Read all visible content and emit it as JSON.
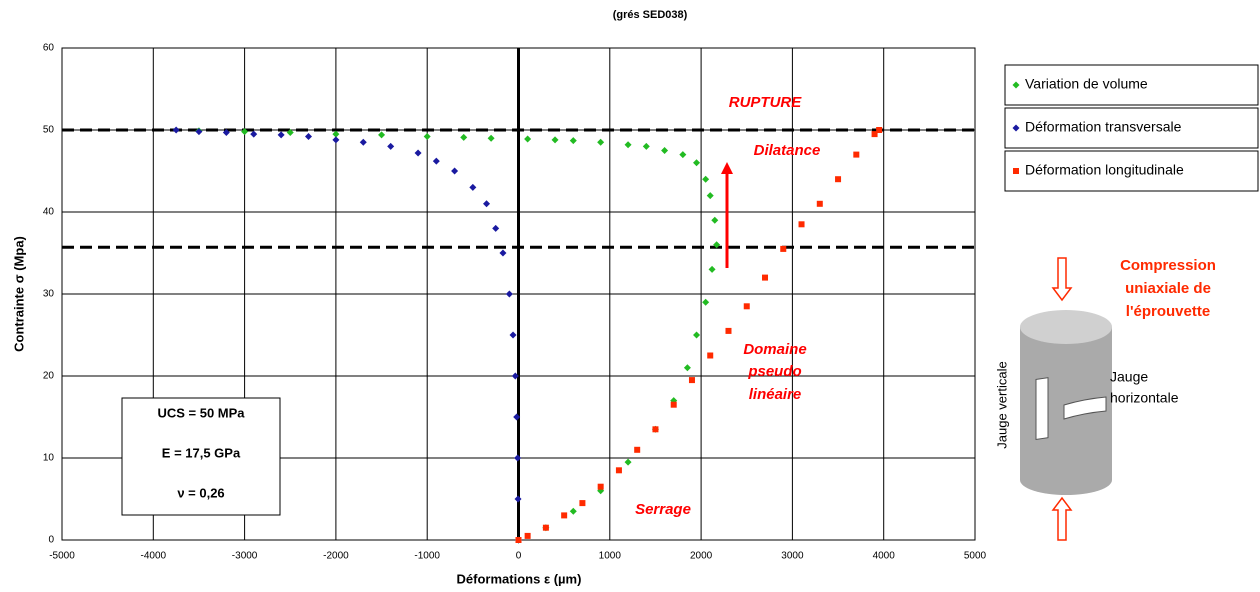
{
  "chart_data": {
    "type": "scatter",
    "title": "(grés  SED038)",
    "x_label": "Déformations ε (µm)",
    "y_label": "Contrainte σ (Mpa)",
    "xlim": [
      -5000,
      5000
    ],
    "ylim": [
      0,
      60
    ],
    "xticks": [
      -5000,
      -4000,
      -3000,
      -2000,
      -1000,
      0,
      1000,
      2000,
      3000,
      4000,
      5000
    ],
    "yticks": [
      0,
      10,
      20,
      30,
      40,
      50,
      60
    ],
    "grid": true,
    "reference_lines": [
      50,
      35.7
    ],
    "series": [
      {
        "name": "Variation de volume",
        "color": "#22bb22",
        "marker": "diamond",
        "x": [
          0,
          300,
          600,
          900,
          1200,
          1500,
          1700,
          1850,
          1950,
          2050,
          2120,
          2170,
          2150,
          2100,
          2050,
          1950,
          1800,
          1600,
          1400,
          1200,
          900,
          600,
          400,
          100,
          -300,
          -600,
          -1000,
          -1500,
          -2000,
          -2500,
          -3000,
          -3500
        ],
        "values": [
          0,
          1.5,
          3.5,
          6,
          9.5,
          13.5,
          17,
          21,
          25,
          29,
          33,
          36,
          39,
          42,
          44,
          46,
          47,
          47.5,
          48,
          48.2,
          48.5,
          48.7,
          48.8,
          48.9,
          49,
          49.1,
          49.2,
          49.4,
          49.5,
          49.7,
          49.8,
          49.9
        ]
      },
      {
        "name": "Déformation transversale",
        "color": "#1a1aa0",
        "marker": "diamond",
        "x": [
          0,
          -5,
          -10,
          -20,
          -35,
          -60,
          -100,
          -170,
          -250,
          -350,
          -500,
          -700,
          -900,
          -1100,
          -1400,
          -1700,
          -2000,
          -2300,
          -2600,
          -2900,
          -3200,
          -3500,
          -3750
        ],
        "values": [
          0,
          5,
          10,
          15,
          20,
          25,
          30,
          35,
          38,
          41,
          43,
          45,
          46.2,
          47.2,
          48,
          48.5,
          48.8,
          49.2,
          49.4,
          49.5,
          49.7,
          49.8,
          50
        ]
      },
      {
        "name": "Déformation longitudinale",
        "color": "#ff2a00",
        "marker": "square",
        "x": [
          0,
          100,
          300,
          500,
          700,
          900,
          1100,
          1300,
          1500,
          1700,
          1900,
          2100,
          2300,
          2500,
          2700,
          2900,
          3100,
          3300,
          3500,
          3700,
          3900,
          3950
        ],
        "values": [
          0,
          0.5,
          1.5,
          3,
          4.5,
          6.5,
          8.5,
          11,
          13.5,
          16.5,
          19.5,
          22.5,
          25.5,
          28.5,
          32,
          35.5,
          38.5,
          41,
          44,
          47,
          49.5,
          50
        ]
      }
    ],
    "annotations": [
      "RUPTURE",
      "Dilatance",
      "Domaine",
      "pseudo",
      "linéaire",
      "Serrage"
    ],
    "info_box": [
      "UCS = 50 MPa",
      "E = 17,5  GPa",
      "ν = 0,26"
    ]
  },
  "diagram": {
    "caption": [
      "Compression",
      "uniaxiale de",
      "l'éprouvette"
    ],
    "vertical_gauge": "Jauge verticale",
    "horizontal_gauge": [
      "Jauge",
      "horizontale"
    ]
  }
}
